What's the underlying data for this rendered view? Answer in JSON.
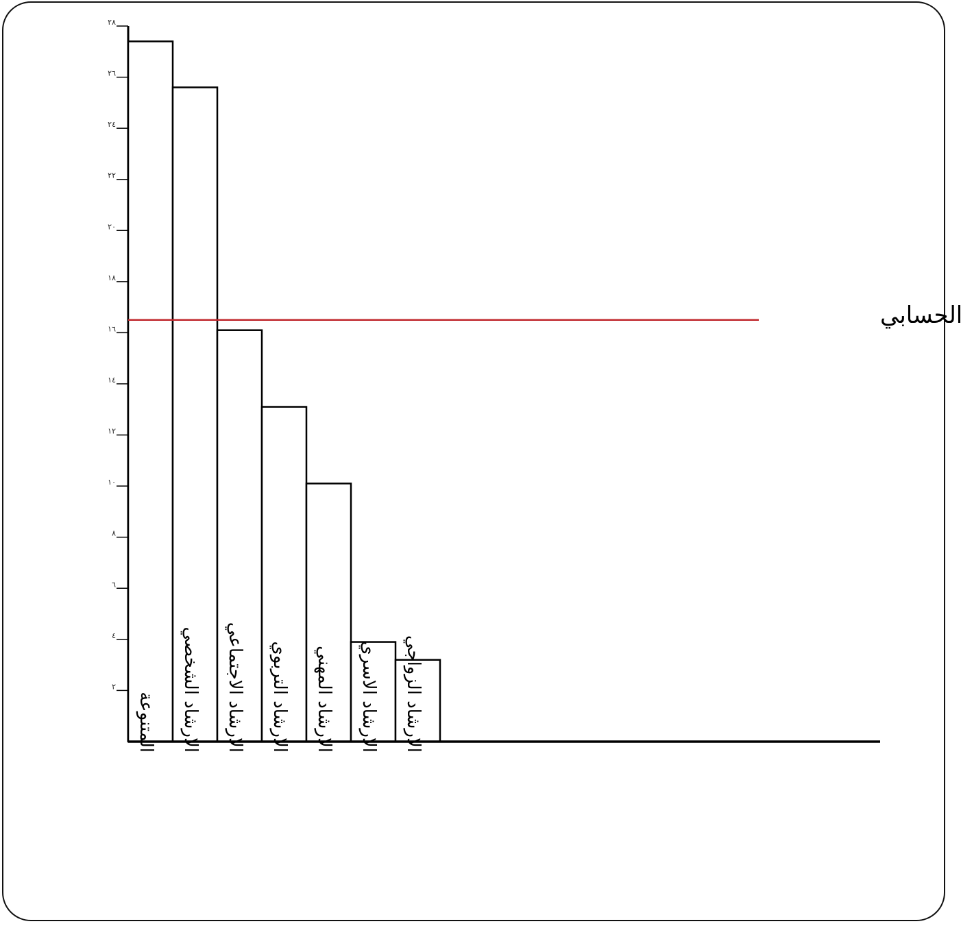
{
  "chart_data": {
    "type": "bar",
    "categories": [
      "المتنوعة",
      "الارشاد الشخصي",
      "الارشاد الاجتماعي",
      "الارشاد التربوي",
      "الارشاد المهني",
      "الارشاد الاسري",
      "الارشاد الزواجي"
    ],
    "values": [
      27.4,
      25.6,
      16.1,
      13.1,
      10.1,
      3.9,
      3.2
    ],
    "yticks": [
      {
        "value": 2,
        "label": "٢"
      },
      {
        "value": 4,
        "label": "٤"
      },
      {
        "value": 6,
        "label": "٦"
      },
      {
        "value": 8,
        "label": "٨"
      },
      {
        "value": 10,
        "label": "١٠"
      },
      {
        "value": 12,
        "label": "١٢"
      },
      {
        "value": 14,
        "label": "١٤"
      },
      {
        "value": 16,
        "label": "١٦"
      },
      {
        "value": 18,
        "label": "١٨"
      },
      {
        "value": 20,
        "label": "٢٠"
      },
      {
        "value": 22,
        "label": "٢٢"
      },
      {
        "value": 24,
        "label": "٢٤"
      },
      {
        "value": 26,
        "label": "٢٦"
      },
      {
        "value": 28,
        "label": "٢٨"
      }
    ],
    "ylim": [
      0,
      28
    ],
    "reference_line": {
      "value": 16.5,
      "label": "الوسط الحسابي",
      "color": "#c0282d"
    },
    "bar_fill": "#ffffff",
    "bar_stroke": "#000000",
    "grid": false,
    "title": "",
    "xlabel": "",
    "ylabel": ""
  }
}
